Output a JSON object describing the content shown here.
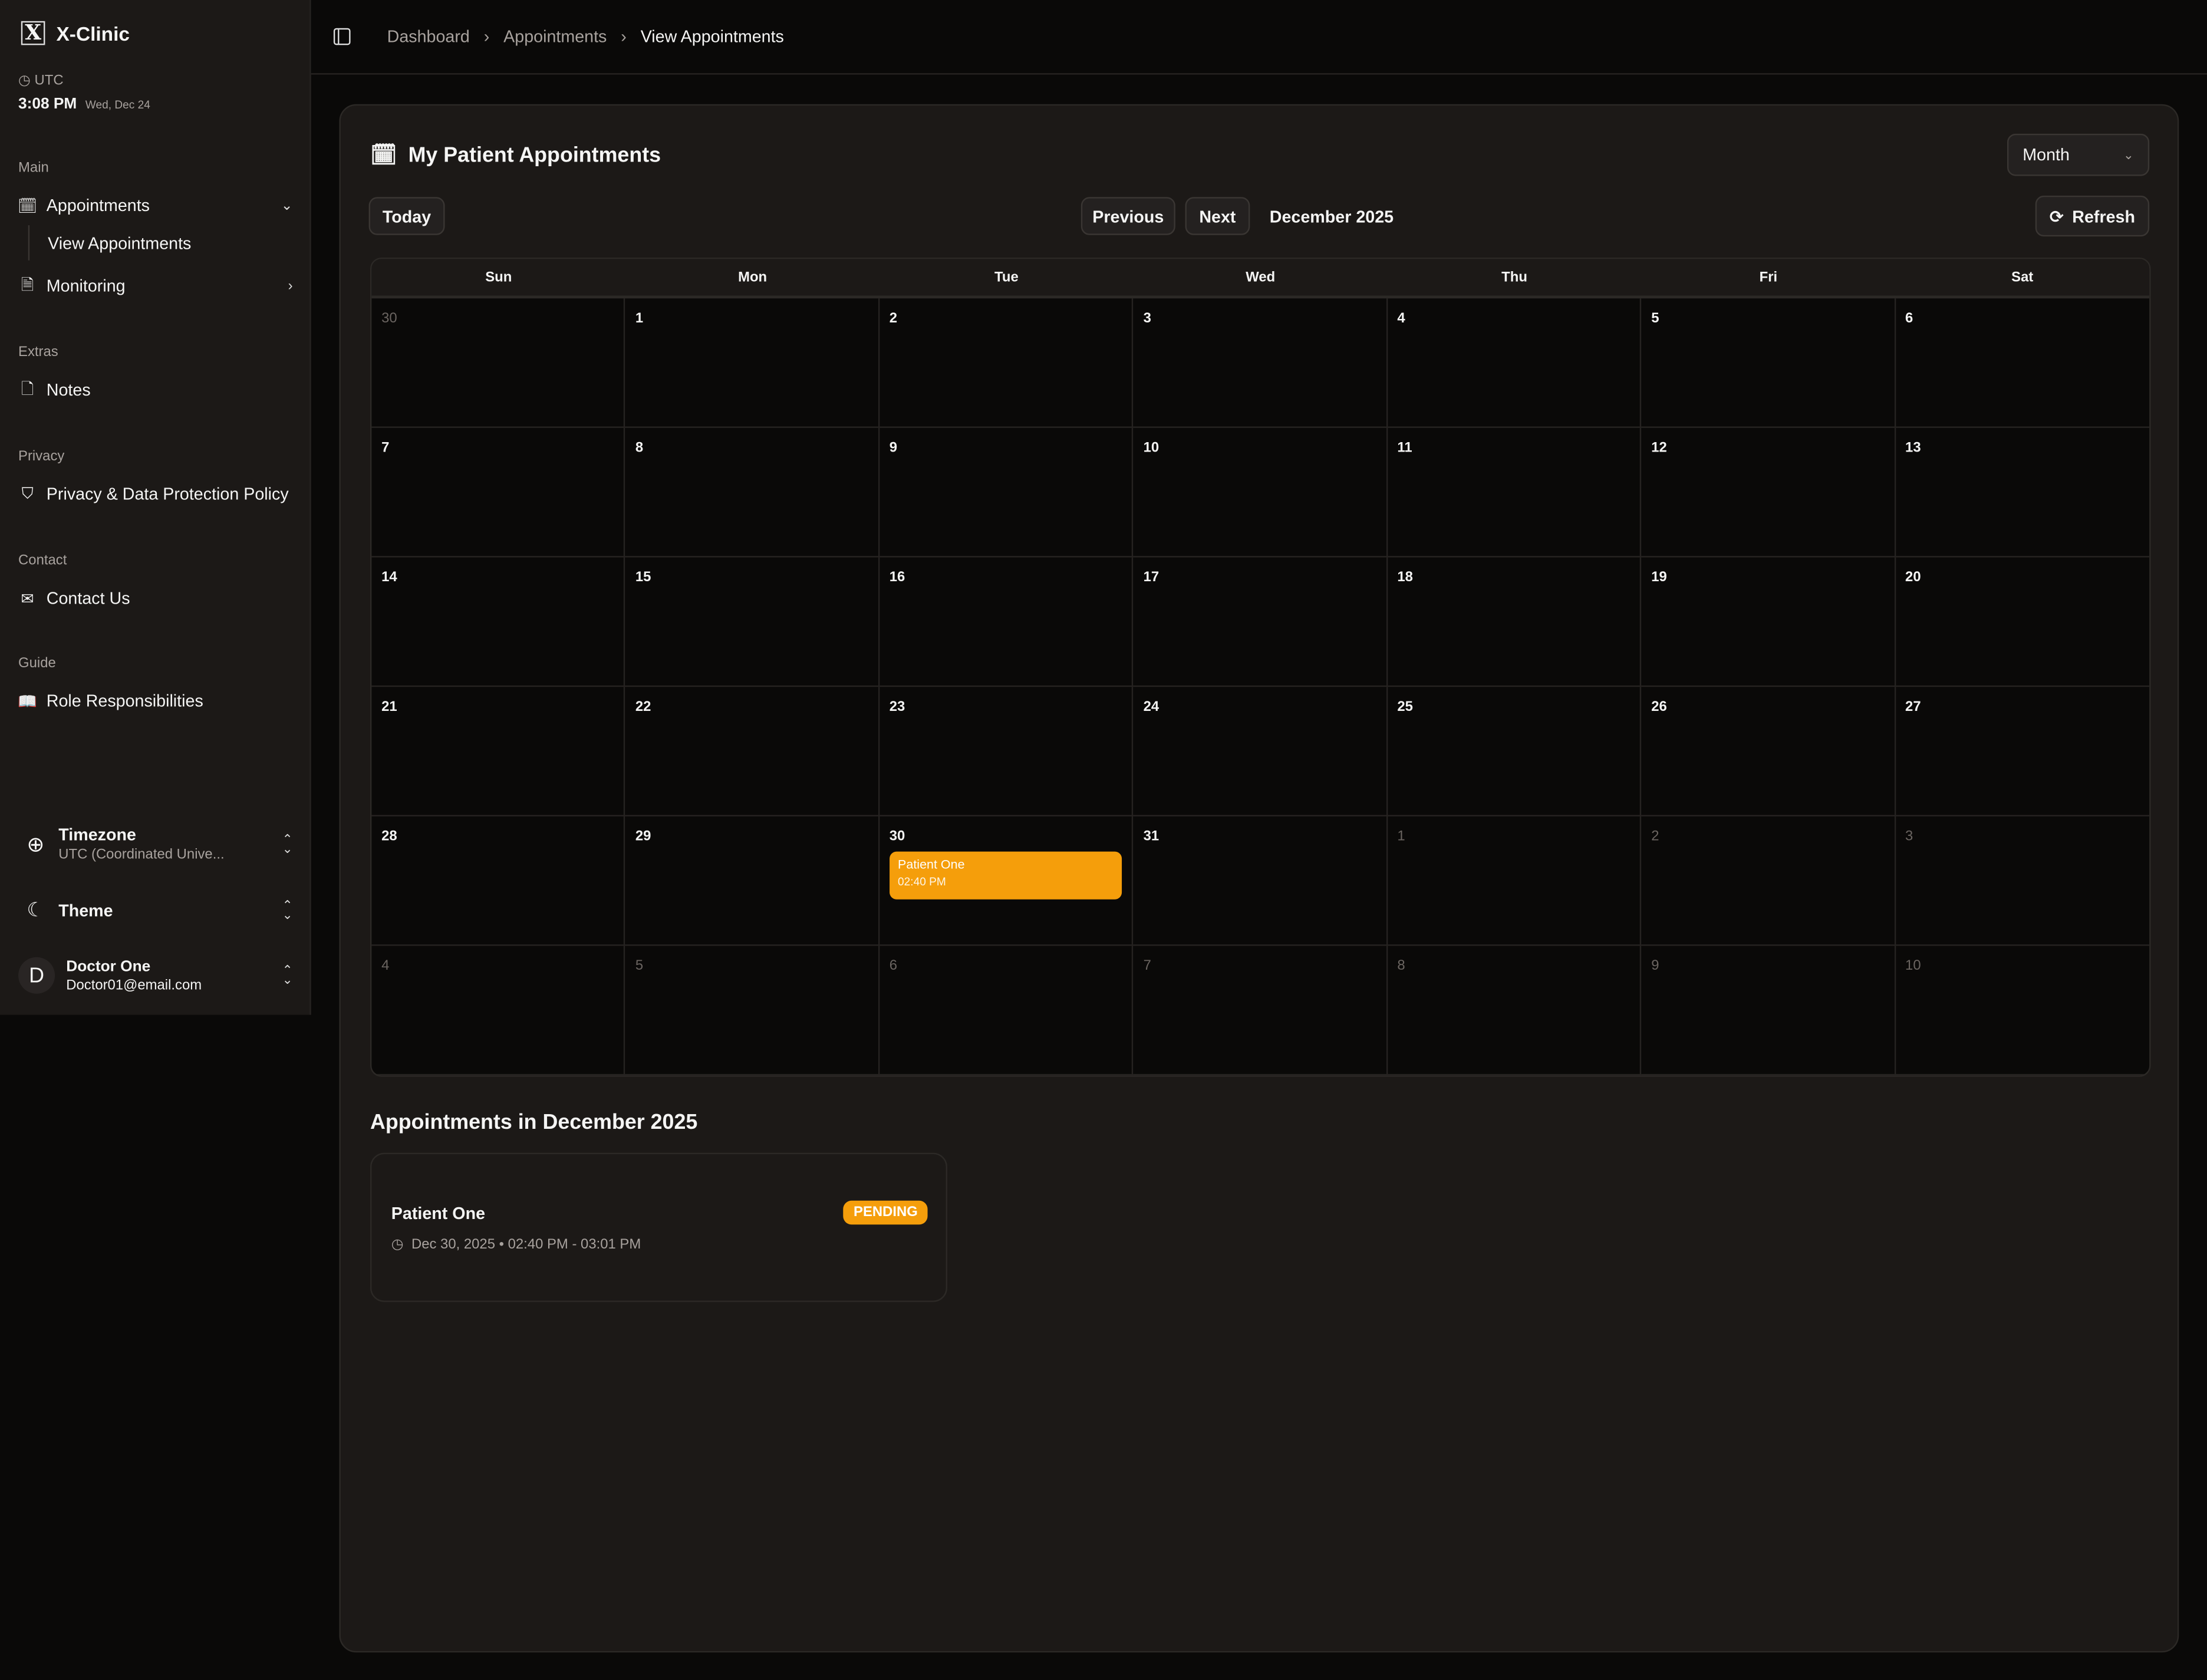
{
  "app": {
    "name": "X-Clinic",
    "timezone_label": "UTC",
    "time": "3:08 PM",
    "date": "Wed, Dec 24"
  },
  "sidebar": {
    "sections": [
      {
        "title": "Main",
        "items": [
          {
            "label": "Appointments",
            "icon": "calendar-clock-icon",
            "expanded": true,
            "children": [
              {
                "label": "View Appointments"
              }
            ]
          },
          {
            "label": "Monitoring",
            "icon": "file-chart-icon"
          }
        ]
      },
      {
        "title": "Extras",
        "items": [
          {
            "label": "Notes",
            "icon": "file-icon"
          }
        ]
      },
      {
        "title": "Privacy",
        "items": [
          {
            "label": "Privacy & Data Protection Policy",
            "icon": "shield-check-icon"
          }
        ]
      },
      {
        "title": "Contact",
        "items": [
          {
            "label": "Contact Us",
            "icon": "mail-icon"
          }
        ]
      },
      {
        "title": "Guide",
        "items": [
          {
            "label": "Role Responsibilities",
            "icon": "book-open-icon"
          }
        ]
      }
    ],
    "timezone": {
      "label": "Timezone",
      "value": "UTC (Coordinated Unive..."
    },
    "theme": {
      "label": "Theme"
    },
    "user": {
      "initial": "D",
      "name": "Doctor One",
      "email": "Doctor01@email.com"
    }
  },
  "breadcrumb": [
    "Dashboard",
    "Appointments",
    "View Appointments"
  ],
  "main": {
    "title": "My Patient Appointments",
    "view_select": "Month",
    "today": "Today",
    "previous": "Previous",
    "next": "Next",
    "month_label": "December 2025",
    "refresh": "Refresh",
    "weekdays": [
      "Sun",
      "Mon",
      "Tue",
      "Wed",
      "Thu",
      "Fri",
      "Sat"
    ],
    "weeks": [
      [
        [
          "30",
          1
        ],
        [
          "1",
          0
        ],
        [
          "2",
          0
        ],
        [
          "3",
          0
        ],
        [
          "4",
          0
        ],
        [
          "5",
          0
        ],
        [
          "6",
          0
        ]
      ],
      [
        [
          "7",
          0
        ],
        [
          "8",
          0
        ],
        [
          "9",
          0
        ],
        [
          "10",
          0
        ],
        [
          "11",
          0
        ],
        [
          "12",
          0
        ],
        [
          "13",
          0
        ]
      ],
      [
        [
          "14",
          0
        ],
        [
          "15",
          0
        ],
        [
          "16",
          0
        ],
        [
          "17",
          0
        ],
        [
          "18",
          0
        ],
        [
          "19",
          0
        ],
        [
          "20",
          0
        ]
      ],
      [
        [
          "21",
          0
        ],
        [
          "22",
          0
        ],
        [
          "23",
          0
        ],
        [
          "24",
          0
        ],
        [
          "25",
          0
        ],
        [
          "26",
          0
        ],
        [
          "27",
          0
        ]
      ],
      [
        [
          "28",
          0
        ],
        [
          "29",
          0
        ],
        [
          "30",
          0
        ],
        [
          "31",
          0
        ],
        [
          "1",
          1
        ],
        [
          "2",
          1
        ],
        [
          "3",
          1
        ]
      ],
      [
        [
          "4",
          1
        ],
        [
          "5",
          1
        ],
        [
          "6",
          1
        ],
        [
          "7",
          1
        ],
        [
          "8",
          1
        ],
        [
          "9",
          1
        ],
        [
          "10",
          1
        ]
      ]
    ],
    "events": [
      {
        "week": 4,
        "day": 2,
        "name": "Patient One",
        "time": "02:40 PM",
        "color": "#f59e0b"
      }
    ],
    "list_title": "Appointments in December 2025",
    "appointments": [
      {
        "patient": "Patient One",
        "status": "PENDING",
        "when": "Dec 30, 2025 • 02:40 PM - 03:01 PM"
      }
    ]
  }
}
